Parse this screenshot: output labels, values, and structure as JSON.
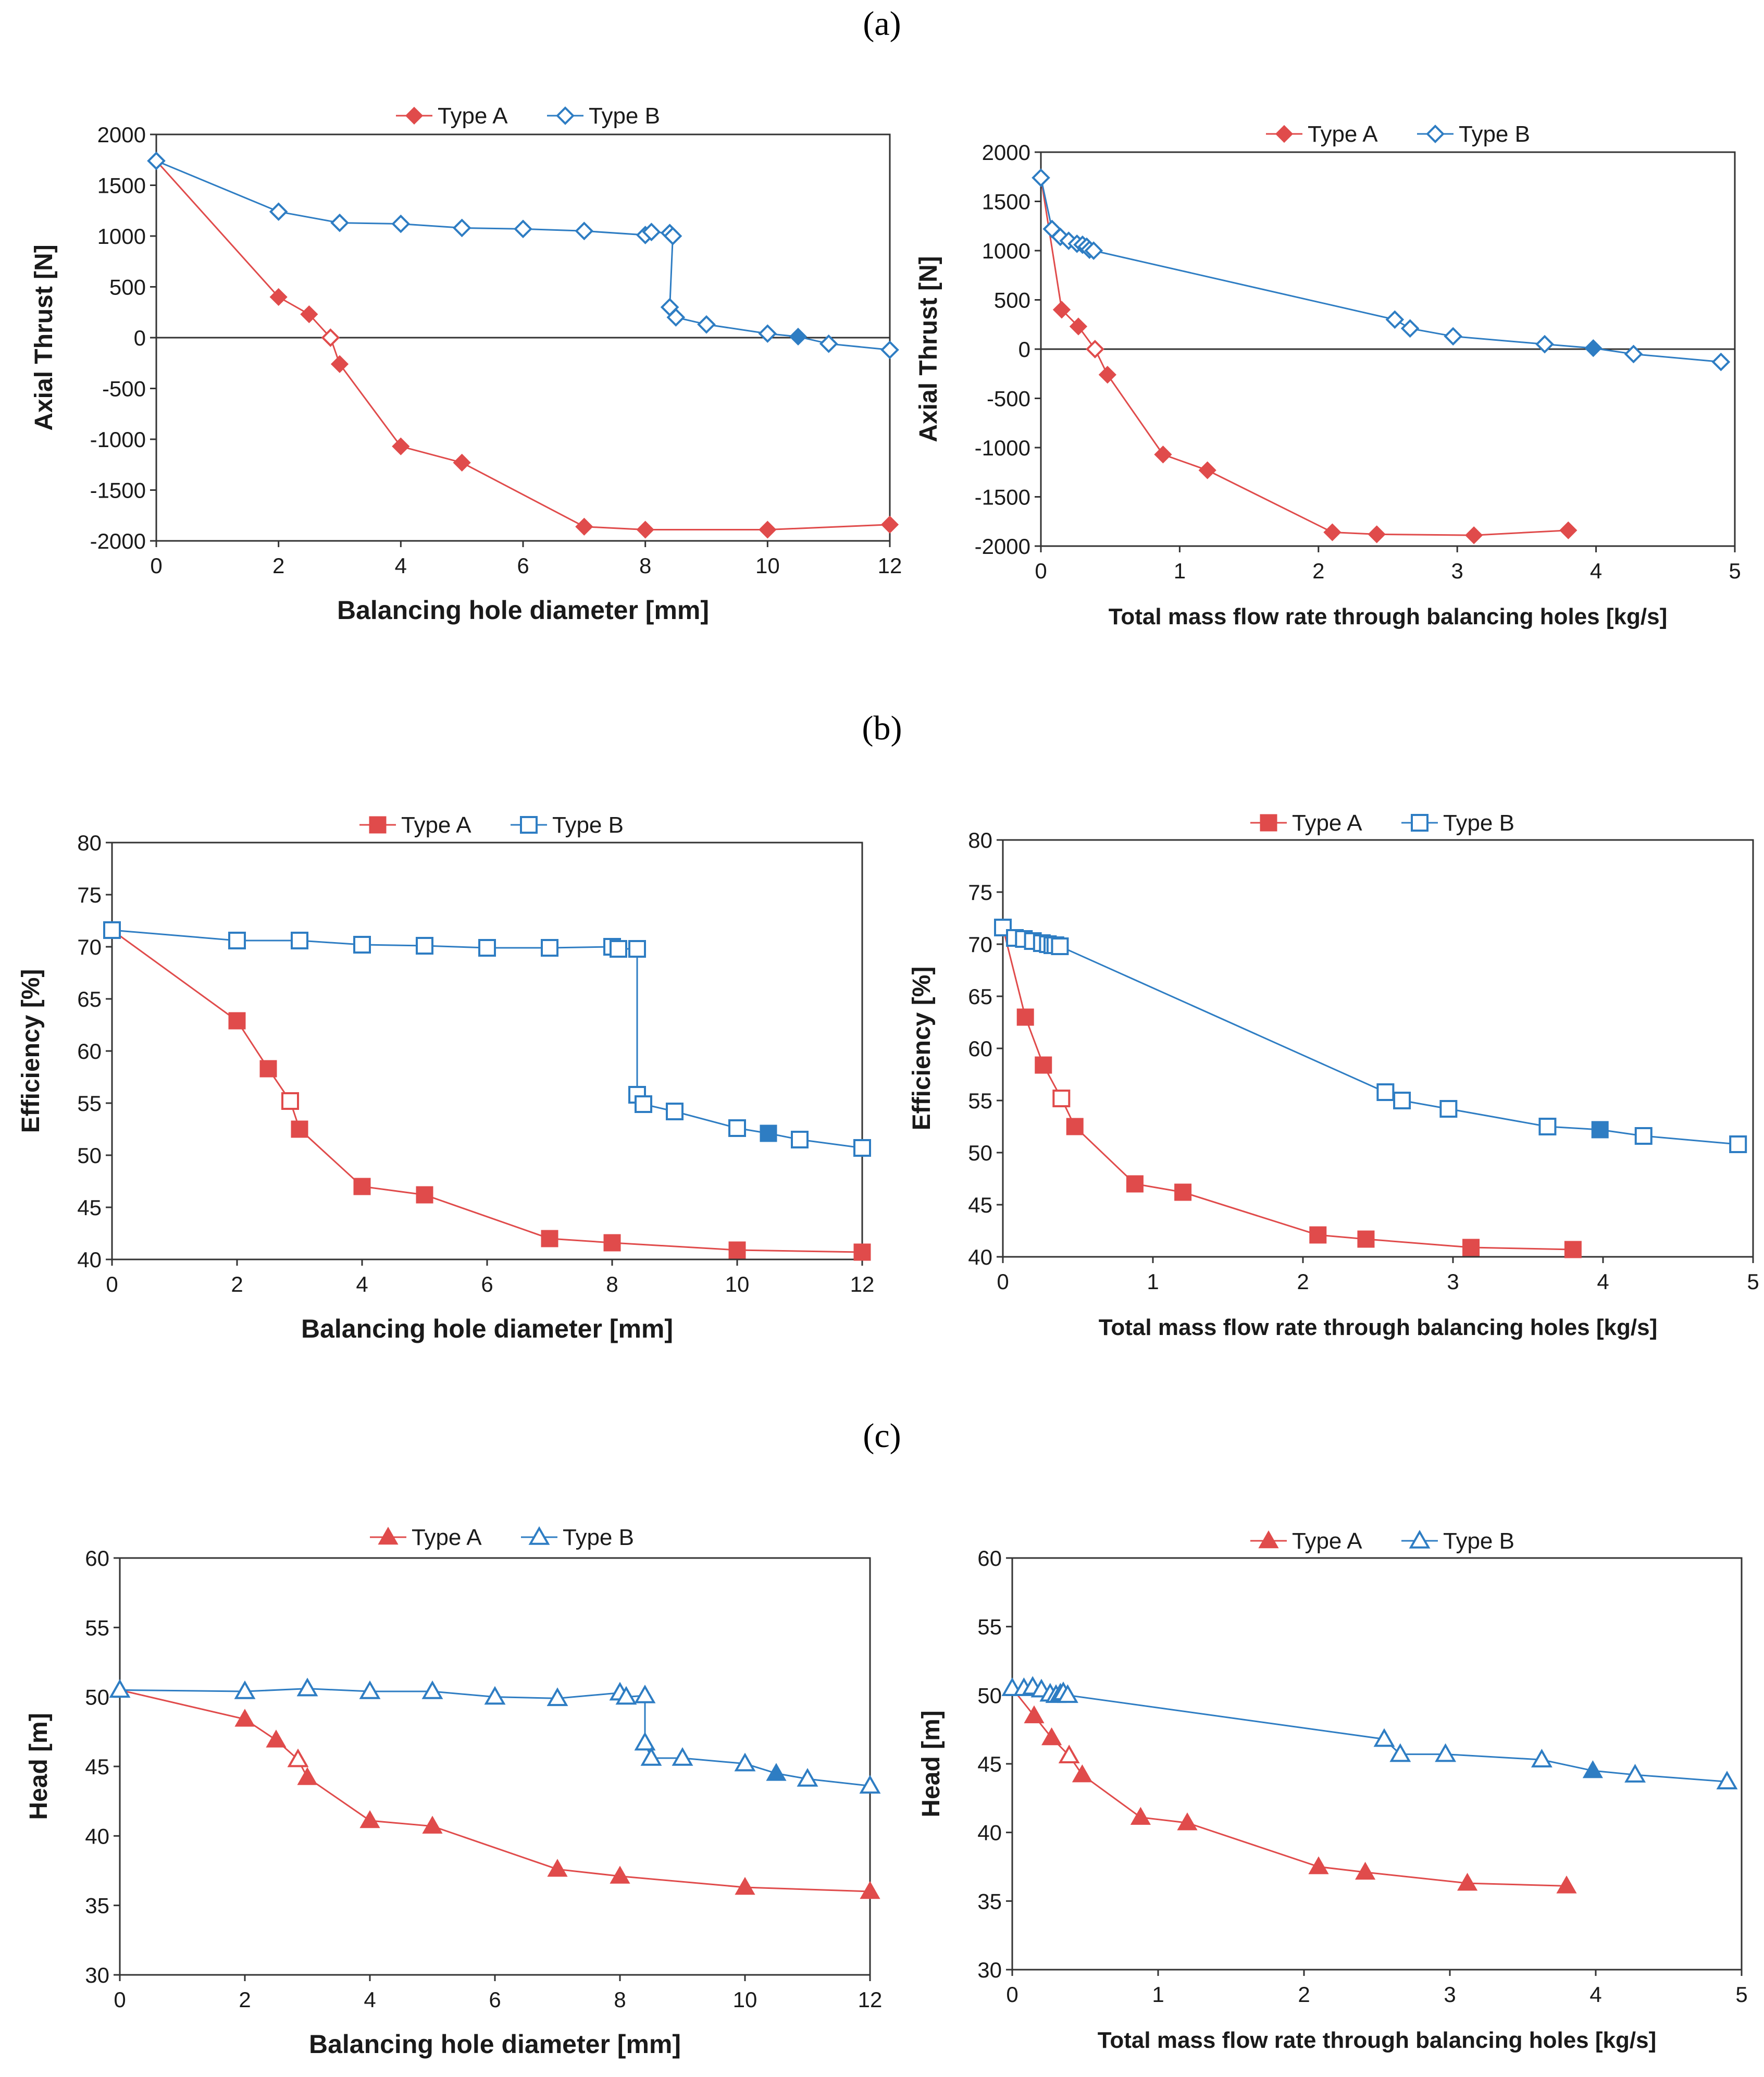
{
  "panel_labels": [
    "(a)",
    "(b)",
    "(c)"
  ],
  "colors": {
    "type_a": "#E04B4B",
    "type_b": "#2E7DC3"
  },
  "chart_data": [
    {
      "id": "thrust_vs_diameter",
      "type": "line",
      "xlabel": "Balancing  hole diameter [mm]",
      "ylabel": "Axial Thrust [N]",
      "xlim": [
        0,
        12
      ],
      "ylim": [
        -2000,
        2000
      ],
      "xticks": [
        0,
        2,
        4,
        6,
        8,
        10,
        12
      ],
      "yticks": [
        -2000,
        -1500,
        -1000,
        -500,
        0,
        500,
        1000,
        1500,
        2000
      ],
      "zero_line": true,
      "marker": "diamond",
      "legend": [
        "Type A",
        "Type B"
      ],
      "series": [
        {
          "name": "Type A",
          "x": [
            0,
            2,
            2.5,
            2.85,
            3,
            4,
            5,
            7,
            8,
            10,
            12
          ],
          "y": [
            1740,
            400,
            230,
            0,
            -260,
            -1070,
            -1230,
            -1860,
            -1890,
            -1890,
            -1840
          ],
          "hollow": [
            3
          ]
        },
        {
          "name": "Type B",
          "x": [
            0,
            2,
            3,
            4,
            5,
            6,
            7,
            8,
            8.1,
            8.4,
            8.45,
            8.4,
            8.5,
            9,
            10,
            10.5,
            11,
            12
          ],
          "y": [
            1740,
            1240,
            1130,
            1120,
            1080,
            1070,
            1050,
            1010,
            1040,
            1030,
            1000,
            300,
            200,
            130,
            40,
            10,
            -60,
            -120
          ],
          "filled": [
            15
          ]
        }
      ]
    },
    {
      "id": "thrust_vs_massflow",
      "type": "line",
      "xlabel": "Total mass flow rate through balancing holes [kg/s]",
      "ylabel": "Axial Thrust [N]",
      "xlim": [
        0,
        5
      ],
      "ylim": [
        -2000,
        2000
      ],
      "xticks": [
        0,
        1,
        2,
        3,
        4,
        5
      ],
      "yticks": [
        -2000,
        -1500,
        -1000,
        -500,
        0,
        500,
        1000,
        1500,
        2000
      ],
      "zero_line": true,
      "marker": "diamond",
      "legend": [
        "Type A",
        "Type B"
      ],
      "series": [
        {
          "name": "Type A",
          "x": [
            0,
            0.15,
            0.27,
            0.39,
            0.48,
            0.88,
            1.2,
            2.1,
            2.42,
            3.12,
            3.8
          ],
          "y": [
            1740,
            400,
            230,
            0,
            -260,
            -1070,
            -1230,
            -1860,
            -1880,
            -1890,
            -1840
          ],
          "hollow": [
            3
          ]
        },
        {
          "name": "Type B",
          "x": [
            0,
            0.08,
            0.14,
            0.2,
            0.26,
            0.3,
            0.33,
            0.35,
            0.38,
            2.55,
            2.66,
            2.97,
            3.63,
            3.98,
            4.27,
            4.9
          ],
          "y": [
            1740,
            1220,
            1140,
            1100,
            1070,
            1060,
            1040,
            1010,
            1000,
            300,
            210,
            130,
            50,
            10,
            -50,
            -130
          ],
          "filled": [
            13
          ]
        }
      ]
    },
    {
      "id": "efficiency_vs_diameter",
      "type": "line",
      "xlabel": "Balancing  hole diameter [mm]",
      "ylabel": "Efficiency [%]",
      "xlim": [
        0,
        12
      ],
      "ylim": [
        40,
        80
      ],
      "xticks": [
        0,
        2,
        4,
        6,
        8,
        10,
        12
      ],
      "yticks": [
        40,
        45,
        50,
        55,
        60,
        65,
        70,
        75,
        80
      ],
      "zero_line": false,
      "marker": "square",
      "legend": [
        "Type A",
        "Type B"
      ],
      "series": [
        {
          "name": "Type A",
          "x": [
            0,
            2,
            2.5,
            2.85,
            3,
            4,
            5,
            7,
            8,
            10,
            12
          ],
          "y": [
            71.6,
            62.9,
            58.3,
            55.2,
            52.5,
            47,
            46.2,
            42,
            41.6,
            40.9,
            40.7
          ],
          "hollow": [
            3
          ]
        },
        {
          "name": "Type B",
          "x": [
            0,
            2,
            3,
            4,
            5,
            6,
            7,
            8,
            8.1,
            8.4,
            8.4,
            8.5,
            9,
            10,
            10.5,
            11,
            12
          ],
          "y": [
            71.6,
            70.6,
            70.6,
            70.2,
            70.1,
            69.9,
            69.9,
            70,
            69.8,
            69.8,
            55.8,
            54.9,
            54.2,
            52.6,
            52.1,
            51.5,
            50.7
          ],
          "filled": [
            14
          ]
        }
      ]
    },
    {
      "id": "efficiency_vs_massflow",
      "type": "line",
      "xlabel": "Total mass flow rate through balancing holes [kg/s]",
      "ylabel": "Efficiency [%]",
      "xlim": [
        0,
        5
      ],
      "ylim": [
        40,
        80
      ],
      "xticks": [
        0,
        1,
        2,
        3,
        4,
        5
      ],
      "yticks": [
        40,
        45,
        50,
        55,
        60,
        65,
        70,
        75,
        80
      ],
      "zero_line": false,
      "marker": "square",
      "legend": [
        "Type A",
        "Type B"
      ],
      "series": [
        {
          "name": "Type A",
          "x": [
            0,
            0.15,
            0.27,
            0.39,
            0.48,
            0.88,
            1.2,
            2.1,
            2.42,
            3.12,
            3.8
          ],
          "y": [
            71.6,
            63,
            58.4,
            55.2,
            52.5,
            47,
            46.2,
            42.1,
            41.7,
            40.9,
            40.7
          ],
          "hollow": [
            3
          ]
        },
        {
          "name": "Type B",
          "x": [
            0,
            0.08,
            0.14,
            0.2,
            0.26,
            0.3,
            0.33,
            0.35,
            0.38,
            2.55,
            2.66,
            2.97,
            3.63,
            3.98,
            4.27,
            4.9
          ],
          "y": [
            71.6,
            70.6,
            70.5,
            70.3,
            70.1,
            70,
            69.9,
            69.9,
            69.8,
            55.8,
            55,
            54.2,
            52.5,
            52.2,
            51.6,
            50.8
          ],
          "filled": [
            13
          ]
        }
      ]
    },
    {
      "id": "head_vs_diameter",
      "type": "line",
      "xlabel": "Balancing  hole diameter [mm]",
      "ylabel": "Head [m]",
      "xlim": [
        0,
        12
      ],
      "ylim": [
        30,
        60
      ],
      "xticks": [
        0,
        2,
        4,
        6,
        8,
        10,
        12
      ],
      "yticks": [
        30,
        35,
        40,
        45,
        50,
        55,
        60
      ],
      "zero_line": false,
      "marker": "triangle",
      "legend": [
        "Type A",
        "Type B"
      ],
      "series": [
        {
          "name": "Type A",
          "x": [
            0,
            2,
            2.5,
            2.85,
            3,
            4,
            5,
            7,
            8,
            10,
            12
          ],
          "y": [
            50.5,
            48.4,
            46.9,
            45.5,
            44.2,
            41.1,
            40.7,
            37.6,
            37.1,
            36.3,
            36
          ],
          "hollow": [
            3
          ]
        },
        {
          "name": "Type B",
          "x": [
            0,
            2,
            3,
            4,
            5,
            6,
            7,
            8,
            8.1,
            8.4,
            8.4,
            8.5,
            9,
            10,
            10.5,
            11,
            12
          ],
          "y": [
            50.5,
            50.4,
            50.6,
            50.4,
            50.4,
            50,
            49.9,
            50.3,
            50,
            50.1,
            46.7,
            45.6,
            45.6,
            45.2,
            44.5,
            44.1,
            43.6
          ],
          "filled": [
            14
          ]
        }
      ]
    },
    {
      "id": "head_vs_massflow",
      "type": "line",
      "xlabel": "Total mass flow rate through balancing holes [kg/s]",
      "ylabel": "Head [m]",
      "xlim": [
        0,
        5
      ],
      "ylim": [
        30,
        60
      ],
      "xticks": [
        0,
        1,
        2,
        3,
        4,
        5
      ],
      "yticks": [
        30,
        35,
        40,
        45,
        50,
        55,
        60
      ],
      "zero_line": false,
      "marker": "triangle",
      "legend": [
        "Type A",
        "Type B"
      ],
      "series": [
        {
          "name": "Type A",
          "x": [
            0,
            0.15,
            0.27,
            0.39,
            0.48,
            0.88,
            1.2,
            2.1,
            2.42,
            3.12,
            3.8
          ],
          "y": [
            50.5,
            48.5,
            46.9,
            45.6,
            44.2,
            41.1,
            40.7,
            37.5,
            37.1,
            36.3,
            36.1
          ],
          "hollow": [
            3
          ]
        },
        {
          "name": "Type B",
          "x": [
            0,
            0.08,
            0.14,
            0.2,
            0.26,
            0.3,
            0.33,
            0.35,
            0.38,
            2.55,
            2.66,
            2.97,
            3.63,
            3.98,
            4.27,
            4.9
          ],
          "y": [
            50.5,
            50.5,
            50.6,
            50.4,
            50.1,
            50,
            50.1,
            50.2,
            50,
            46.8,
            45.7,
            45.7,
            45.3,
            44.5,
            44.2,
            43.7
          ],
          "filled": [
            13
          ]
        }
      ]
    }
  ]
}
